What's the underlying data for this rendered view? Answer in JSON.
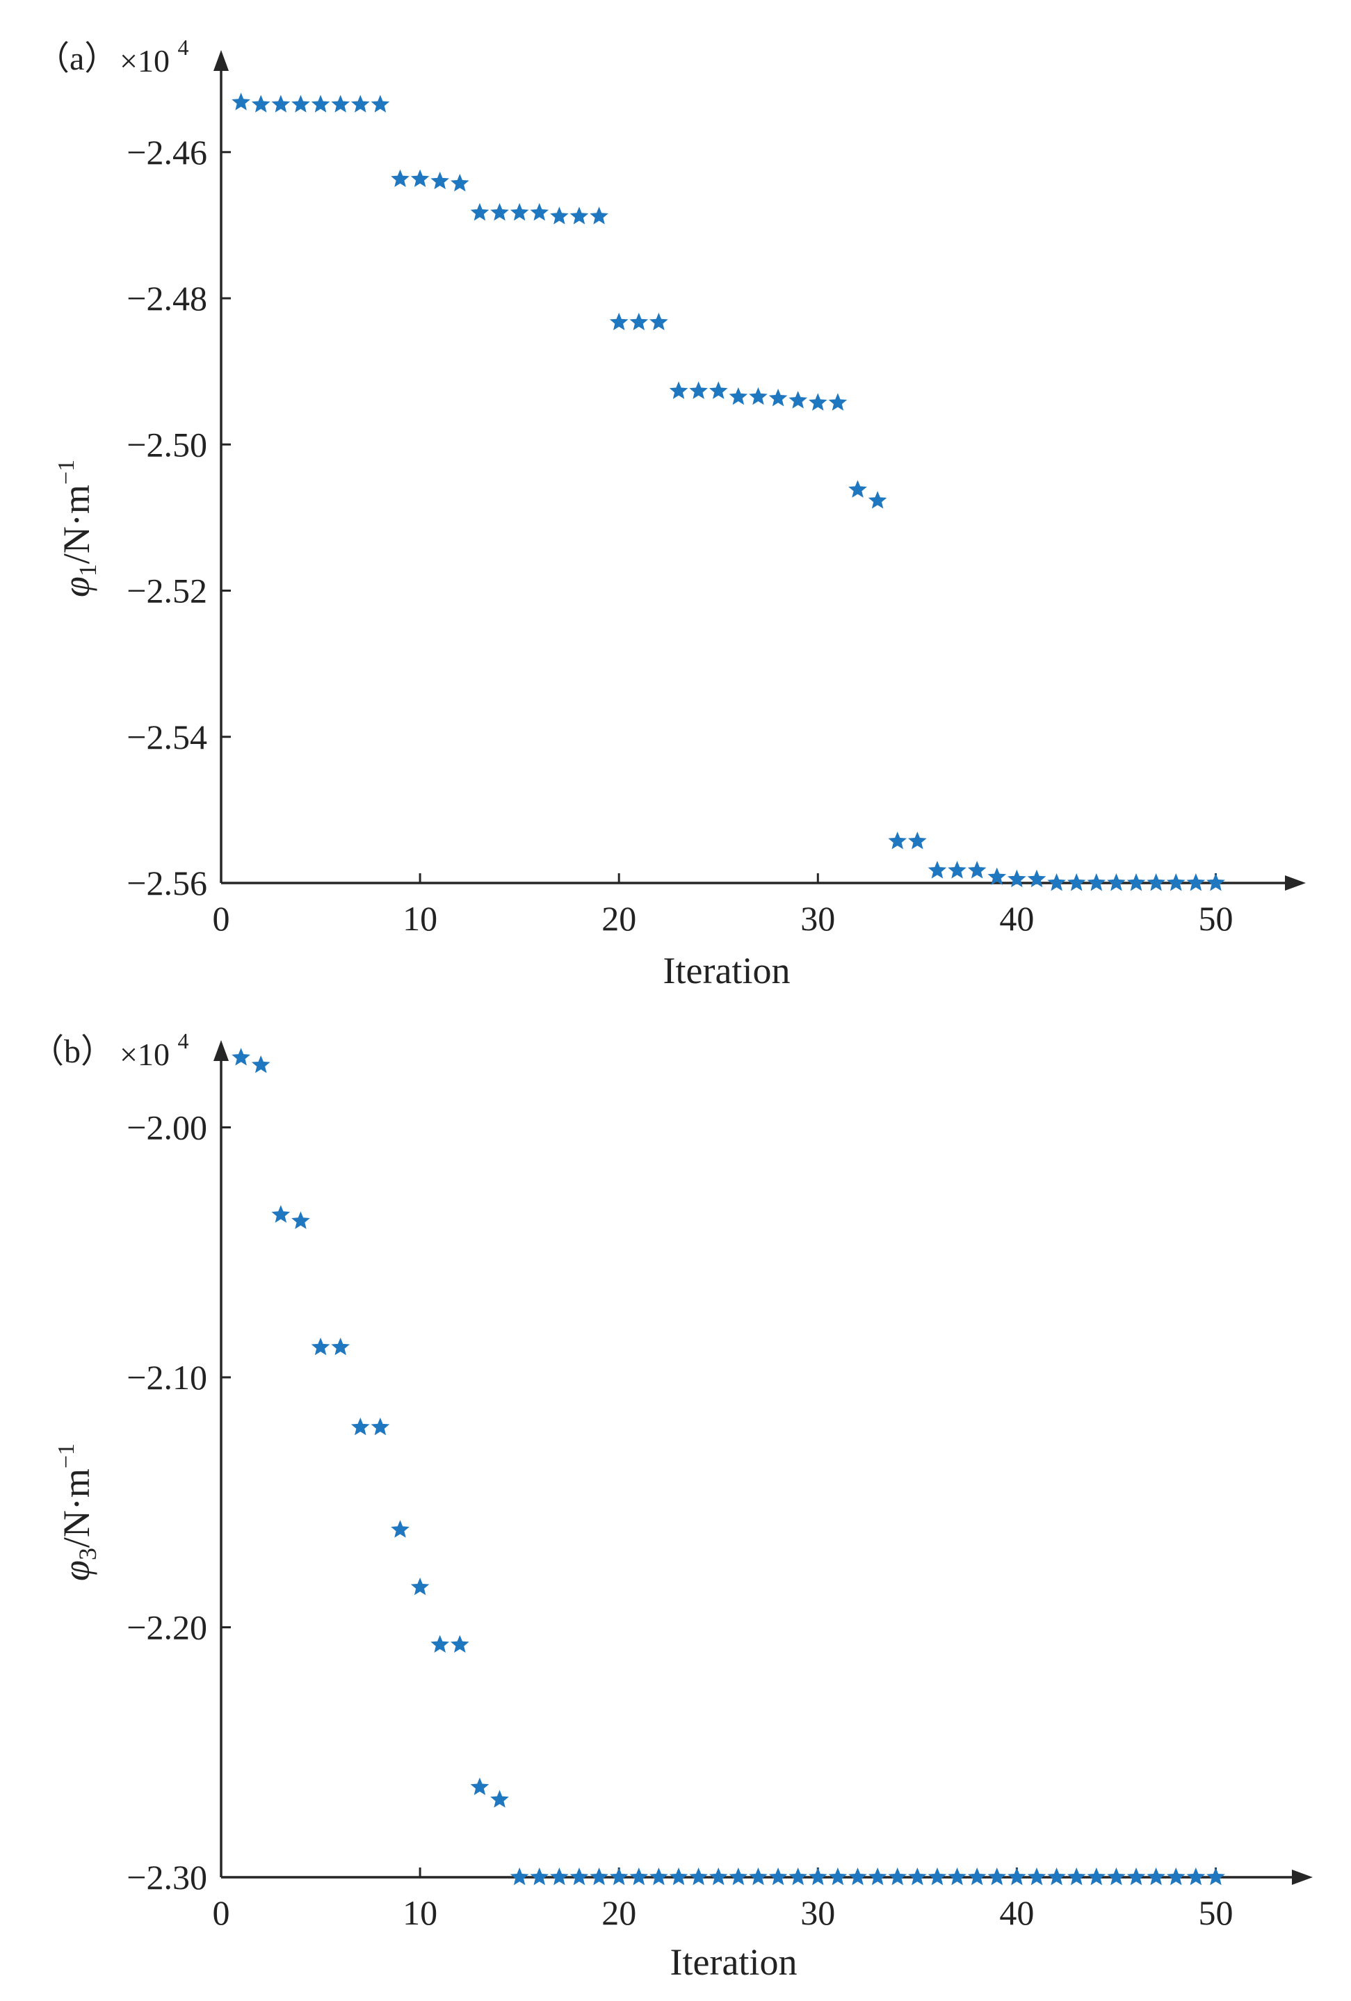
{
  "chart_data": [
    {
      "type": "scatter",
      "panel_label": "（a）",
      "multiplier": {
        "base": "×10",
        "exponent": "4"
      },
      "xlabel": "Iteration",
      "ylabel": {
        "symbol": "φ",
        "subscript": "1",
        "unit": "/N·m",
        "unit_exponent": "−1"
      },
      "xlim": [
        0,
        52.5
      ],
      "ylim": [
        -2.56,
        -2.4487
      ],
      "xticks": [
        {
          "value": 0,
          "label": "0"
        },
        {
          "value": 10,
          "label": "10"
        },
        {
          "value": 20,
          "label": "20"
        },
        {
          "value": 30,
          "label": "30"
        },
        {
          "value": 40,
          "label": "40"
        },
        {
          "value": 50,
          "label": "50"
        }
      ],
      "yticks": [
        {
          "value": -2.46,
          "label": "−2.46"
        },
        {
          "value": -2.48,
          "label": "−2.48"
        },
        {
          "value": -2.5,
          "label": "−2.50"
        },
        {
          "value": -2.52,
          "label": "−2.52"
        },
        {
          "value": -2.54,
          "label": "−2.54"
        },
        {
          "value": -2.56,
          "label": "−2.56"
        }
      ],
      "marker": "star",
      "marker_color": "#1f77c0",
      "series": [
        {
          "name": "phi1",
          "x": [
            1,
            2,
            3,
            4,
            5,
            6,
            7,
            8,
            9,
            10,
            11,
            12,
            13,
            14,
            15,
            16,
            17,
            18,
            19,
            20,
            21,
            22,
            23,
            24,
            25,
            26,
            27,
            28,
            29,
            30,
            31,
            32,
            33,
            34,
            35,
            36,
            37,
            38,
            39,
            40,
            41,
            42,
            43,
            44,
            45,
            46,
            47,
            48,
            49,
            50
          ],
          "y": [
            -2.4532,
            -2.4535,
            -2.4535,
            -2.4535,
            -2.4535,
            -2.4535,
            -2.4535,
            -2.4535,
            -2.4637,
            -2.4637,
            -2.464,
            -2.4643,
            -2.4683,
            -2.4683,
            -2.4683,
            -2.4683,
            -2.4688,
            -2.4688,
            -2.4688,
            -2.4833,
            -2.4833,
            -2.4833,
            -2.4927,
            -2.4927,
            -2.4927,
            -2.4935,
            -2.4935,
            -2.4937,
            -2.494,
            -2.4943,
            -2.4943,
            -2.5062,
            -2.5077,
            -2.5543,
            -2.5543,
            -2.5583,
            -2.5583,
            -2.5583,
            -2.5592,
            -2.5595,
            -2.5595,
            -2.56,
            -2.56,
            -2.56,
            -2.56,
            -2.56,
            -2.56,
            -2.56,
            -2.56,
            -2.56
          ]
        }
      ]
    },
    {
      "type": "scatter",
      "panel_label": "（b）",
      "multiplier": {
        "base": "×10",
        "exponent": "4"
      },
      "xlabel": "Iteration",
      "ylabel": {
        "symbol": "φ",
        "subscript": "3",
        "unit": "/N·m",
        "unit_exponent": "−1"
      },
      "xlim": [
        0,
        52.5
      ],
      "ylim": [
        -2.3,
        -1.974
      ],
      "xticks": [
        {
          "value": 0,
          "label": "0"
        },
        {
          "value": 10,
          "label": "10"
        },
        {
          "value": 20,
          "label": "20"
        },
        {
          "value": 30,
          "label": "30"
        },
        {
          "value": 40,
          "label": "40"
        },
        {
          "value": 50,
          "label": "50"
        }
      ],
      "yticks": [
        {
          "value": -2.0,
          "label": "−2.00"
        },
        {
          "value": -2.1,
          "label": "−2.10"
        },
        {
          "value": -2.2,
          "label": "−2.20"
        },
        {
          "value": -2.3,
          "label": "−2.30"
        }
      ],
      "marker": "star",
      "marker_color": "#1f77c0",
      "series": [
        {
          "name": "phi3",
          "x": [
            1,
            2,
            3,
            4,
            5,
            6,
            7,
            8,
            9,
            10,
            11,
            12,
            13,
            14,
            15,
            16,
            17,
            18,
            19,
            20,
            21,
            22,
            23,
            24,
            25,
            26,
            27,
            28,
            29,
            30,
            31,
            32,
            33,
            34,
            35,
            36,
            37,
            38,
            39,
            40,
            41,
            42,
            43,
            44,
            45,
            46,
            47,
            48,
            49,
            50
          ],
          "y": [
            -1.9721,
            -1.9751,
            -2.035,
            -2.0375,
            -2.088,
            -2.088,
            -2.12,
            -2.12,
            -2.161,
            -2.184,
            -2.207,
            -2.207,
            -2.264,
            -2.269,
            -2.3,
            -2.3,
            -2.3,
            -2.3,
            -2.3,
            -2.3,
            -2.3,
            -2.3,
            -2.3,
            -2.3,
            -2.3,
            -2.3,
            -2.3,
            -2.3,
            -2.3,
            -2.3,
            -2.3,
            -2.3,
            -2.3,
            -2.3,
            -2.3,
            -2.3,
            -2.3,
            -2.3,
            -2.3,
            -2.3,
            -2.3,
            -2.3,
            -2.3,
            -2.3,
            -2.3,
            -2.3,
            -2.3,
            -2.3,
            -2.3,
            -2.3
          ]
        }
      ]
    }
  ]
}
